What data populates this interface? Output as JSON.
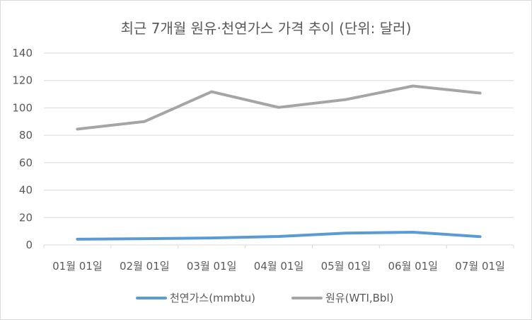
{
  "chart_data": {
    "type": "line",
    "title": "최근 7개월 원유·천연가스 가격 추이 (단위: 달러)",
    "categories": [
      "01월 01일",
      "02월 01일",
      "03월 01일",
      "04월 01일",
      "05월 01일",
      "06월 01일",
      "07월 01일"
    ],
    "ylim": [
      0,
      140
    ],
    "yticks": [
      0,
      20,
      40,
      60,
      80,
      100,
      120,
      140
    ],
    "grid": true,
    "legend_position": "bottom",
    "series": [
      {
        "name": "천연가스(mmbtu)",
        "color": "#5b9bd5",
        "values": [
          4.2,
          4.6,
          5.1,
          6.2,
          8.7,
          9.3,
          6.1
        ]
      },
      {
        "name": "원유(WTI,Bbl)",
        "color": "#a5a5a5",
        "values": [
          84.5,
          90.1,
          111.8,
          100.4,
          106.1,
          116.0,
          110.8
        ]
      }
    ]
  }
}
